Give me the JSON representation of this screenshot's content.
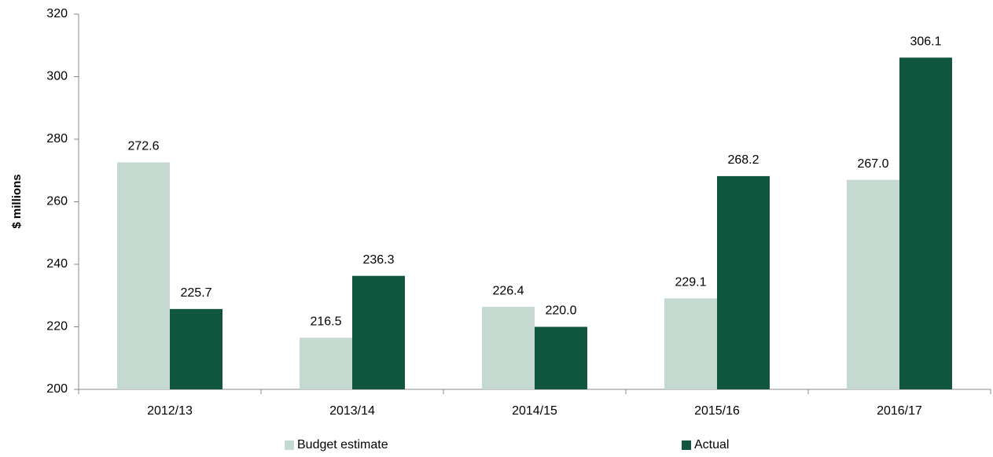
{
  "chart_data": {
    "type": "bar",
    "y_label": "$ millions",
    "categories": [
      "2012/13",
      "2013/14",
      "2014/15",
      "2015/16",
      "2016/17"
    ],
    "series": [
      {
        "name": "Budget estimate",
        "color": "#c5d9d1",
        "values": [
          272.6,
          216.5,
          226.4,
          229.1,
          267.0
        ],
        "value_labels": [
          "272.6",
          "216.5",
          "226.4",
          "229.1",
          "267.0"
        ]
      },
      {
        "name": "Actual",
        "color": "#115740",
        "values": [
          225.7,
          236.3,
          220.0,
          268.2,
          306.1
        ],
        "value_labels": [
          "225.7",
          "236.3",
          "220.0",
          "268.2",
          "306.1"
        ]
      }
    ],
    "ylim": [
      200,
      320
    ],
    "yticks": [
      200,
      220,
      240,
      260,
      280,
      300,
      320
    ],
    "grid": false
  }
}
